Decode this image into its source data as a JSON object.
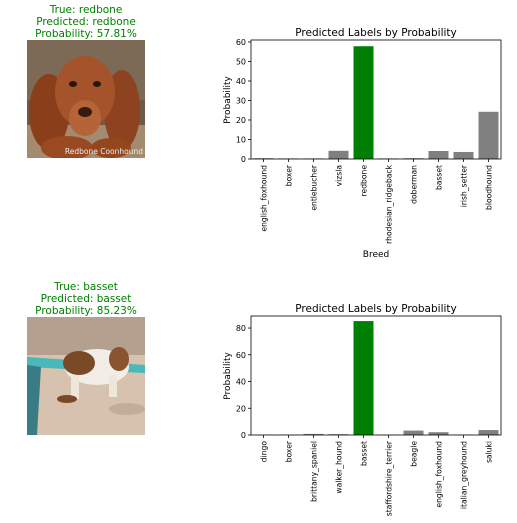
{
  "panels": [
    {
      "true_label": "True: redbone",
      "pred_label": "Predicted: redbone",
      "prob_label": "Probability: 57.81%",
      "photo_watermark": "Redbone Coonhound"
    },
    {
      "true_label": "True: basset",
      "pred_label": "Predicted: basset",
      "prob_label": "Probability: 85.23%"
    }
  ],
  "chart_data": [
    {
      "type": "bar",
      "title": "Predicted Labels by Probability",
      "xlabel": "Breed",
      "ylabel": "Probability",
      "categories": [
        "english_foxhound",
        "boxer",
        "entlebucher",
        "vizsla",
        "redbone",
        "rhodesian_ridgeback",
        "doberman",
        "basset",
        "irish_setter",
        "bloodhound"
      ],
      "values": [
        0.4,
        0.3,
        0.3,
        4.2,
        57.8,
        0.3,
        0.4,
        4.1,
        3.6,
        24.2
      ],
      "highlight": "redbone",
      "highlight_color": "#008000",
      "bar_color": "#808080",
      "ylim": [
        0,
        61
      ],
      "yticks": [
        0,
        10,
        20,
        30,
        40,
        50,
        60
      ]
    },
    {
      "type": "bar",
      "title": "Predicted Labels by Probability",
      "xlabel": "",
      "ylabel": "Probability",
      "categories": [
        "dingo",
        "boxer",
        "brittany_spaniel",
        "walker_hound",
        "basset",
        "staffordshire_terrier",
        "beagle",
        "english_foxhound",
        "italian_greyhound",
        "saluki"
      ],
      "values": [
        0.2,
        0.2,
        0.8,
        0.6,
        85.2,
        0.2,
        3.3,
        2.1,
        0.3,
        3.7
      ],
      "highlight": "basset",
      "highlight_color": "#008000",
      "bar_color": "#808080",
      "ylim": [
        0,
        89
      ],
      "yticks": [
        0,
        20,
        40,
        60,
        80
      ]
    }
  ]
}
